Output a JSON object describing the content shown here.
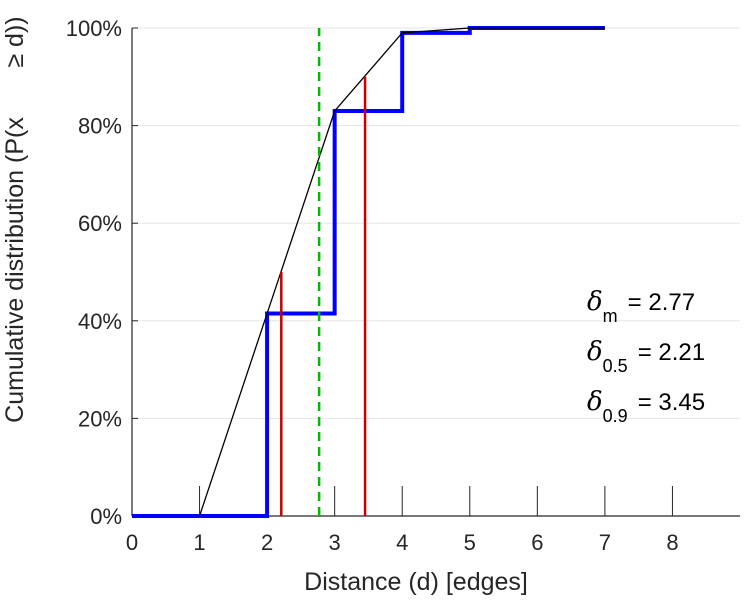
{
  "chart_data": {
    "type": "line",
    "xlabel": "Distance (d) [edges]",
    "ylabel_line1": "Cumulative distribution (P(x",
    "ylabel_line2": "≥ d))",
    "xlim": [
      0,
      9
    ],
    "ylim": [
      0,
      100
    ],
    "x_ticks": [
      0,
      1,
      2,
      3,
      4,
      5,
      6,
      7,
      8
    ],
    "y_ticks": [
      0,
      20,
      40,
      60,
      80,
      100
    ],
    "y_tick_labels": [
      "0%",
      "20%",
      "40%",
      "60%",
      "80%",
      "100%"
    ],
    "grid": "horizontal",
    "series": [
      {
        "kind": "step",
        "color": "#0000ff",
        "x": [
          0,
          2,
          2,
          3,
          3,
          4,
          4,
          5,
          5,
          7
        ],
        "y": [
          0,
          0,
          41.5,
          41.5,
          83,
          83,
          99,
          99,
          100,
          100
        ]
      },
      {
        "kind": "interpolated",
        "color": "#000000",
        "x": [
          1,
          2,
          3,
          4,
          5,
          7
        ],
        "y": [
          0,
          41.5,
          83,
          99,
          100,
          100
        ]
      }
    ],
    "mean_line": {
      "x": 2.77,
      "color": "#00bb00"
    },
    "percentile_lines": [
      {
        "x": 2.21,
        "y": 50,
        "color": "#cc0000"
      },
      {
        "x": 3.45,
        "y": 90,
        "color": "#cc0000"
      }
    ],
    "annotations": [
      {
        "symbol": "δ",
        "sub": "m",
        "text": "= 2.77"
      },
      {
        "symbol": "δ",
        "sub": "0.5",
        "text": "= 2.21"
      },
      {
        "symbol": "δ",
        "sub": "0.9",
        "text": "= 3.45"
      }
    ]
  }
}
